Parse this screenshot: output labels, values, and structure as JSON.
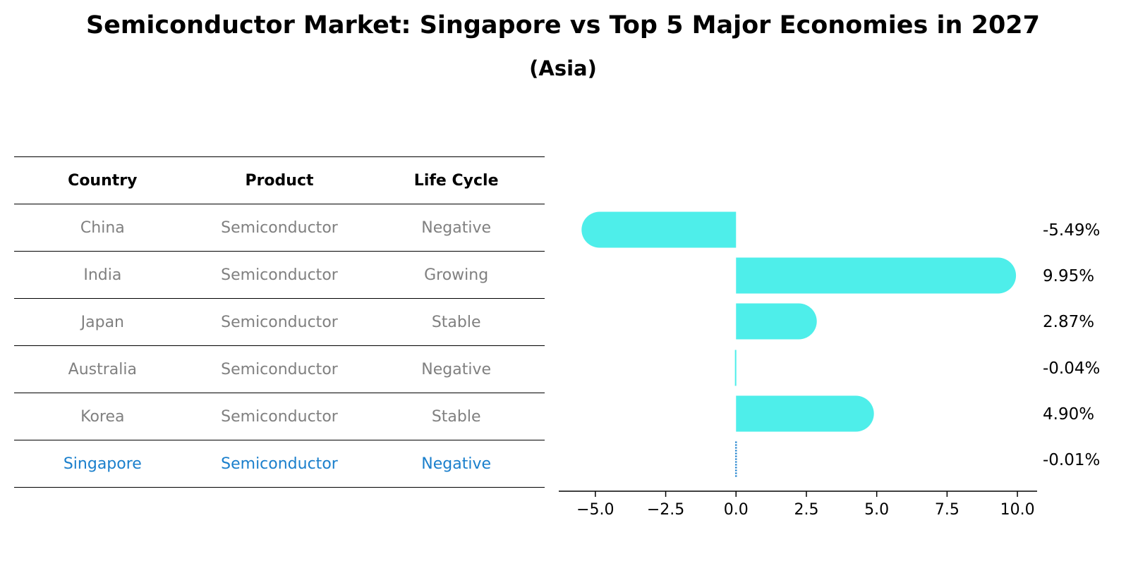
{
  "header": {
    "title": "Semiconductor Market: Singapore vs Top 5 Major Economies in 2027",
    "subtitle": "(Asia)"
  },
  "table": {
    "columns": [
      "Country",
      "Product",
      "Life Cycle"
    ],
    "rows": [
      {
        "country": "China",
        "product": "Semiconductor",
        "life_cycle": "Negative"
      },
      {
        "country": "India",
        "product": "Semiconductor",
        "life_cycle": "Growing"
      },
      {
        "country": "Japan",
        "product": "Semiconductor",
        "life_cycle": "Stable"
      },
      {
        "country": "Australia",
        "product": "Semiconductor",
        "life_cycle": "Negative"
      },
      {
        "country": "Korea",
        "product": "Semiconductor",
        "life_cycle": "Stable"
      },
      {
        "country": "Singapore",
        "product": "Semiconductor",
        "life_cycle": "Negative"
      }
    ]
  },
  "colors": {
    "bar": "#4eeeea",
    "highlight": "#1a7fcc",
    "muted_text": "#808080"
  },
  "chart_data": {
    "type": "bar",
    "orientation": "horizontal",
    "categories": [
      "China",
      "India",
      "Japan",
      "Australia",
      "Korea",
      "Singapore"
    ],
    "values": [
      -5.49,
      9.95,
      2.87,
      -0.04,
      4.9,
      -0.01
    ],
    "value_labels": [
      "-5.49%",
      "9.95%",
      "2.87%",
      "-0.04%",
      "4.90%",
      "-0.01%"
    ],
    "highlight_category": "Singapore",
    "xlim": [
      -6.3,
      10.7
    ],
    "xticks": [
      -5.0,
      -2.5,
      0.0,
      2.5,
      5.0,
      7.5,
      10.0
    ],
    "xtick_labels": [
      "−5.0",
      "−2.5",
      "0.0",
      "2.5",
      "5.0",
      "7.5",
      "10.0"
    ],
    "xlabel": "",
    "ylabel": "",
    "grid": false
  }
}
